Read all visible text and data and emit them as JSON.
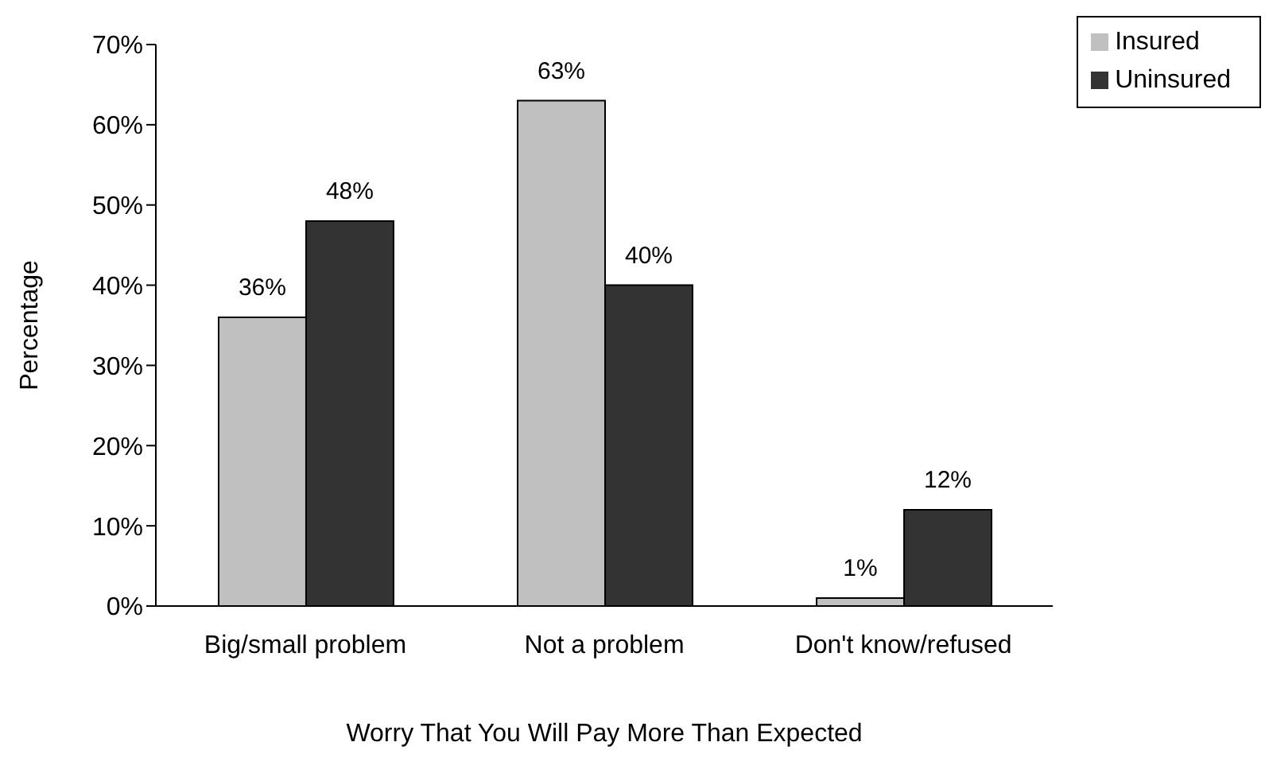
{
  "chart_data": {
    "type": "bar",
    "xlabel": "Worry That You Will Pay More Than Expected",
    "ylabel": "Percentage",
    "categories": [
      "Big/small problem",
      "Not a problem",
      "Don't know/refused"
    ],
    "series": [
      {
        "name": "Insured",
        "color": "#c0c0c0",
        "values": [
          36,
          63,
          1
        ],
        "value_labels": [
          "36%",
          "63%",
          "1%"
        ]
      },
      {
        "name": "Uninsured",
        "color": "#333333",
        "values": [
          48,
          40,
          12
        ],
        "value_labels": [
          "48%",
          "40%",
          "12%"
        ]
      }
    ],
    "ylim": [
      0,
      70
    ],
    "yticks": [
      {
        "value": 0,
        "label": "0%"
      },
      {
        "value": 10,
        "label": "10%"
      },
      {
        "value": 20,
        "label": "20%"
      },
      {
        "value": 30,
        "label": "30%"
      },
      {
        "value": 40,
        "label": "40%"
      },
      {
        "value": 50,
        "label": "50%"
      },
      {
        "value": 60,
        "label": "60%"
      },
      {
        "value": 70,
        "label": "70%"
      }
    ],
    "grid": false,
    "legend": "top right"
  }
}
